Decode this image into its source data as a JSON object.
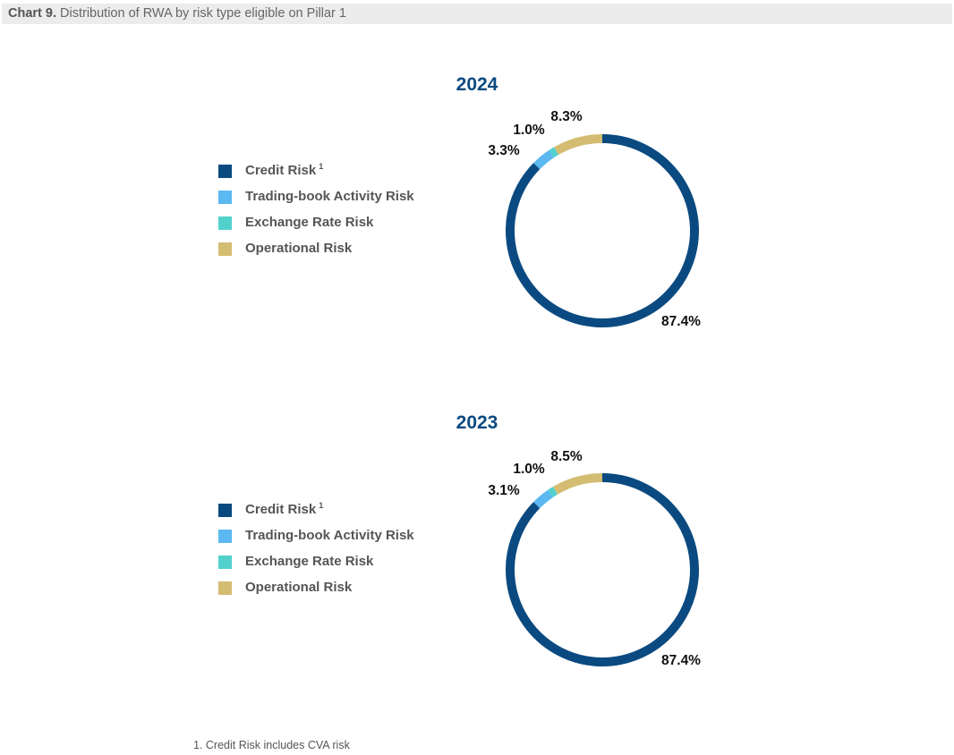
{
  "header": {
    "chart_number": "Chart 9.",
    "title": "Distribution of RWA by risk type eligible on Pillar 1"
  },
  "legend": {
    "items": [
      {
        "label": "Credit Risk",
        "sup": "1",
        "color": "#0b4a80"
      },
      {
        "label": "Trading-book Activity Risk",
        "sup": "",
        "color": "#5bb8f0"
      },
      {
        "label": "Exchange Rate Risk",
        "sup": "",
        "color": "#52d1cc"
      },
      {
        "label": "Operational Risk",
        "sup": "",
        "color": "#d4bc72"
      }
    ]
  },
  "chart_data": [
    {
      "type": "pie",
      "title": "2024",
      "categories": [
        "Credit Risk",
        "Trading-book Activity Risk",
        "Exchange Rate Risk",
        "Operational Risk"
      ],
      "values": [
        87.4,
        3.3,
        1.0,
        8.3
      ],
      "value_labels": [
        "87.4%",
        "3.3%",
        "1.0%",
        "8.3%"
      ],
      "colors": [
        "#0b4a80",
        "#5bb8f0",
        "#52d1cc",
        "#d4bc72"
      ],
      "legend": "left"
    },
    {
      "type": "pie",
      "title": "2023",
      "categories": [
        "Credit Risk",
        "Trading-book Activity Risk",
        "Exchange Rate Risk",
        "Operational Risk"
      ],
      "values": [
        87.4,
        3.1,
        1.0,
        8.5
      ],
      "value_labels": [
        "87.4%",
        "3.1%",
        "1.0%",
        "8.5%"
      ],
      "colors": [
        "#0b4a80",
        "#5bb8f0",
        "#52d1cc",
        "#d4bc72"
      ],
      "legend": "left"
    }
  ],
  "footnote": "1. Credit Risk includes CVA risk"
}
